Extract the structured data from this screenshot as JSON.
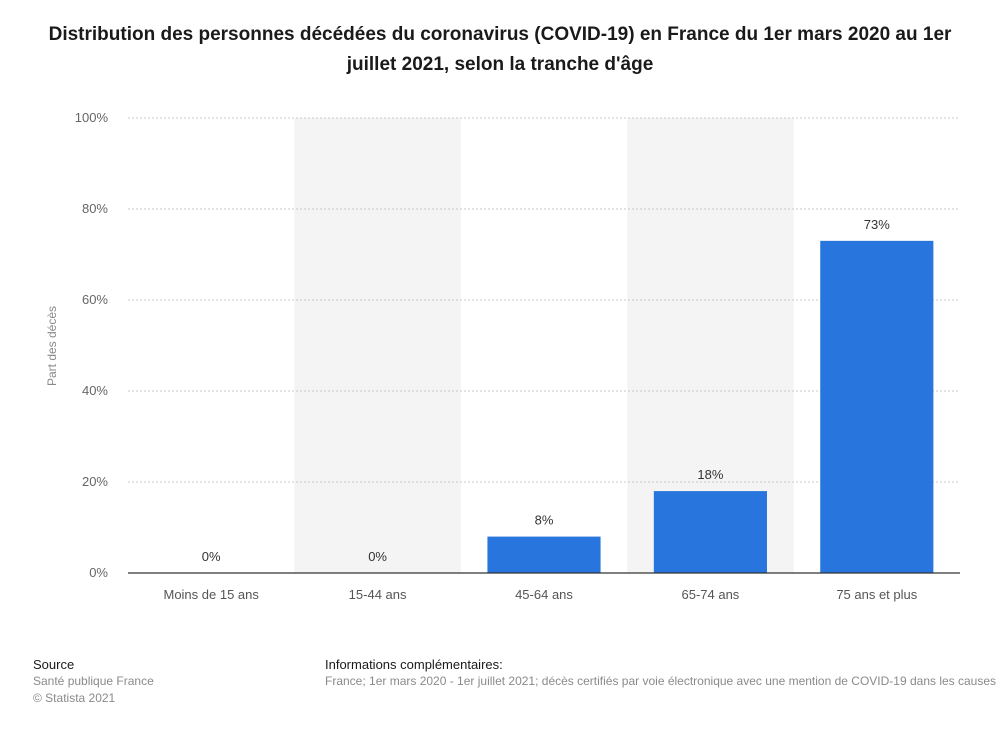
{
  "chart_data": {
    "type": "bar",
    "title": "Distribution des personnes décédées du coronavirus (COVID-19) en France du 1er mars 2020 au 1er juillet 2021, selon la tranche d'âge",
    "categories": [
      "Moins de 15 ans",
      "15-44 ans",
      "45-64 ans",
      "65-74 ans",
      "75 ans et plus"
    ],
    "values": [
      0,
      0,
      8,
      18,
      73
    ],
    "data_labels": [
      "0%",
      "0%",
      "8%",
      "18%",
      "73%"
    ],
    "ylabel": "Part des décès",
    "xlabel": "",
    "ylim": [
      0,
      100
    ],
    "yticks": [
      0,
      20,
      40,
      60,
      80,
      100
    ],
    "ytick_labels": [
      "0%",
      "20%",
      "40%",
      "60%",
      "80%",
      "100%"
    ],
    "grid": true,
    "legend": "none",
    "bar_color": "#2876dd",
    "band_color": "#f4f4f4"
  },
  "footer": {
    "source_heading": "Source",
    "source_lines": [
      "Santé publique France",
      "© Statista 2021"
    ],
    "info_heading": "Informations complémentaires:",
    "info_text": "France; 1er mars 2020 - 1er juillet 2021; décès certifiés par voie électronique avec une mention de COVID-19 dans les causes"
  }
}
